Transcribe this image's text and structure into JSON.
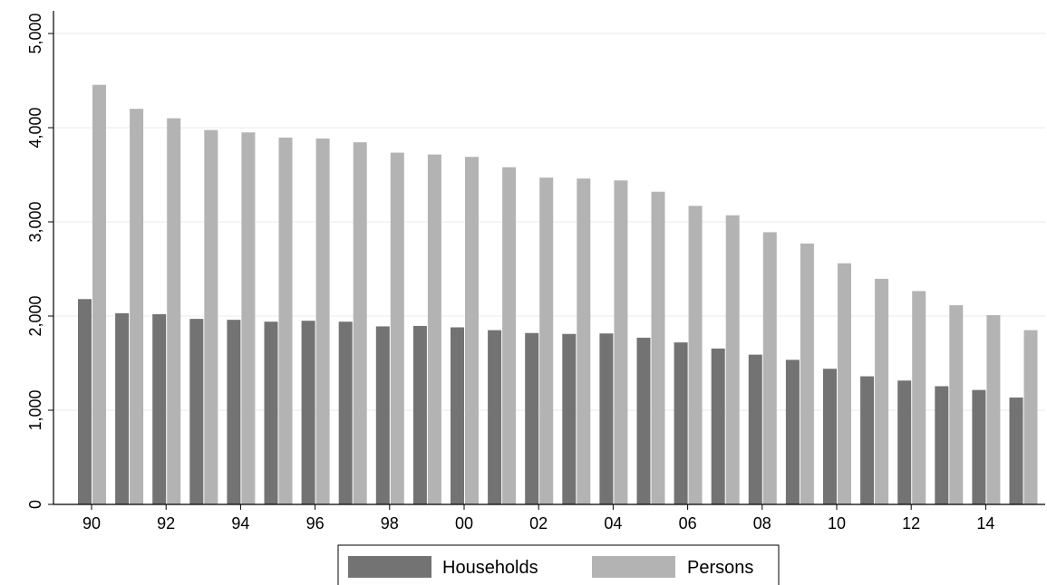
{
  "chart_data": {
    "type": "bar",
    "title": "",
    "xlabel": "",
    "ylabel": "",
    "categories": [
      "90",
      "91",
      "92",
      "93",
      "94",
      "95",
      "96",
      "97",
      "98",
      "99",
      "00",
      "01",
      "02",
      "03",
      "04",
      "05",
      "06",
      "07",
      "08",
      "09",
      "10",
      "11",
      "12",
      "13",
      "14",
      "15"
    ],
    "x_tick_labels": [
      "90",
      "92",
      "94",
      "96",
      "98",
      "00",
      "02",
      "04",
      "06",
      "08",
      "10",
      "12",
      "14"
    ],
    "y_tick_labels": [
      "0",
      "1,000",
      "2,000",
      "3,000",
      "4,000",
      "5,000"
    ],
    "ylim": [
      0,
      5000
    ],
    "grid": true,
    "legend_position": "bottom",
    "series": [
      {
        "name": "Households",
        "color": "#737373",
        "values": [
          2180,
          2030,
          2020,
          1970,
          1960,
          1940,
          1950,
          1940,
          1890,
          1895,
          1880,
          1850,
          1820,
          1810,
          1815,
          1770,
          1720,
          1655,
          1590,
          1535,
          1440,
          1360,
          1315,
          1255,
          1215,
          1135
        ]
      },
      {
        "name": "Persons",
        "color": "#b3b3b3",
        "values": [
          4455,
          4200,
          4100,
          3975,
          3950,
          3895,
          3885,
          3845,
          3735,
          3715,
          3690,
          3580,
          3470,
          3460,
          3440,
          3320,
          3170,
          3070,
          2890,
          2770,
          2560,
          2395,
          2265,
          2115,
          2010,
          1850
        ]
      }
    ]
  }
}
